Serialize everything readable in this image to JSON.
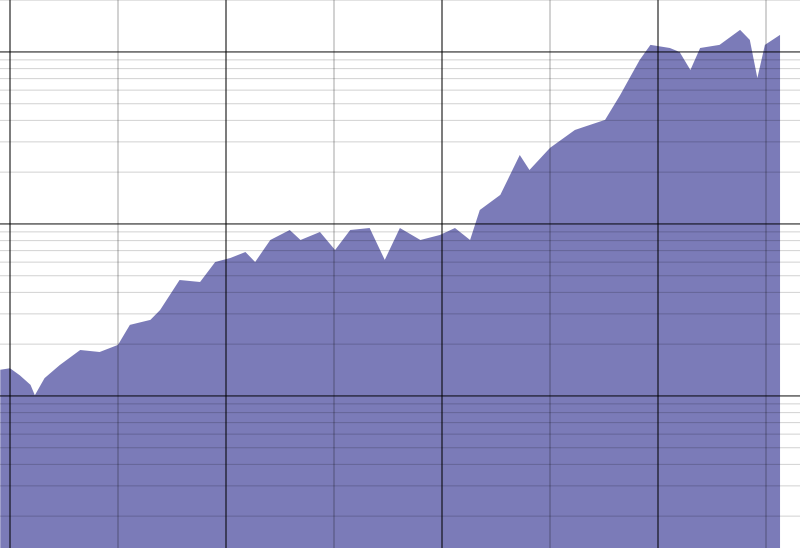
{
  "chart_data": {
    "type": "area",
    "log_scale": true,
    "grid": true,
    "color": "#7b7bb8",
    "xlim": [
      -0.0926,
      7.3148
    ],
    "ylim": [
      1.306,
      2005
    ],
    "xticks": [
      0,
      2,
      4,
      6
    ],
    "minor_xticks": [
      1,
      3,
      5,
      7
    ],
    "yticks": [
      10,
      100,
      1000
    ],
    "minor_yticks": [
      2,
      3,
      4,
      5,
      6,
      7,
      8,
      9,
      20,
      30,
      40,
      50,
      60,
      70,
      80,
      90,
      200,
      300,
      400,
      500,
      600,
      700,
      800,
      900,
      2000
    ],
    "x": [
      -0.09,
      0,
      0.09,
      0.19,
      0.23,
      0.32,
      0.46,
      0.65,
      0.83,
      1,
      1.11,
      1.3,
      1.39,
      1.57,
      1.76,
      1.9,
      2.04,
      2.18,
      2.27,
      2.41,
      2.59,
      2.69,
      2.87,
      3.01,
      3.15,
      3.33,
      3.47,
      3.61,
      3.8,
      3.98,
      4.12,
      4.26,
      4.35,
      4.54,
      4.72,
      4.81,
      5,
      5.23,
      5.51,
      5.65,
      5.83,
      5.93,
      6.11,
      6.2,
      6.3,
      6.39,
      6.57,
      6.76,
      6.85,
      6.92,
      6.99,
      7.13
    ],
    "values": [
      14.2,
      14.5,
      13.2,
      11.6,
      10.1,
      12.7,
      15.1,
      18.5,
      18.0,
      19.8,
      25.9,
      27.7,
      31.6,
      47.2,
      46.0,
      60.1,
      63.4,
      68.7,
      60.1,
      80.7,
      92.3,
      80.7,
      89.8,
      70.6,
      92.3,
      94.8,
      61.8,
      94.8,
      80.7,
      86.3,
      94.8,
      80.7,
      120.5,
      147.5,
      251.8,
      206,
      276.7,
      352,
      403,
      562,
      898,
      1099,
      1055,
      1000,
      786,
      1055,
      1099,
      1343,
      1175,
      706,
      1099,
      1256
    ]
  }
}
